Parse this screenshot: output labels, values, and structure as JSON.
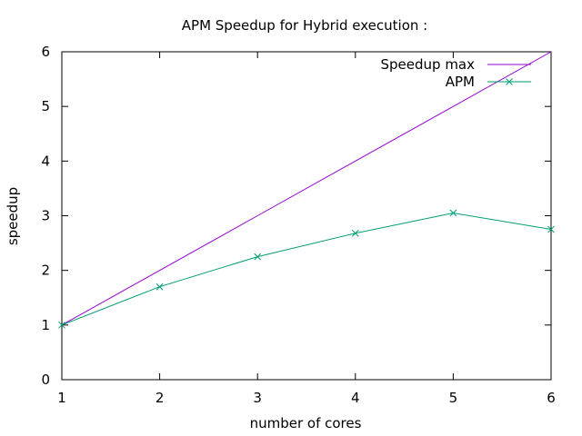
{
  "chart_data": {
    "type": "line",
    "title": "APM Speedup for Hybrid execution :",
    "xlabel": "number of cores",
    "ylabel": "speedup",
    "xlim": [
      1,
      6
    ],
    "ylim": [
      0,
      6
    ],
    "xticks": [
      1,
      2,
      3,
      4,
      5,
      6
    ],
    "yticks": [
      0,
      1,
      2,
      3,
      4,
      5,
      6
    ],
    "grid": false,
    "legend_position": "top-right",
    "series": [
      {
        "name": "Speedup max",
        "color": "#9400d3",
        "marker": "none",
        "x": [
          1,
          2,
          3,
          4,
          5,
          6
        ],
        "y": [
          1,
          2,
          3,
          4,
          5,
          6
        ]
      },
      {
        "name": "APM",
        "color": "#009e73",
        "marker": "x",
        "x": [
          1,
          2,
          3,
          4,
          5,
          6
        ],
        "y": [
          1.0,
          1.7,
          2.25,
          2.68,
          3.05,
          2.75
        ]
      }
    ]
  }
}
